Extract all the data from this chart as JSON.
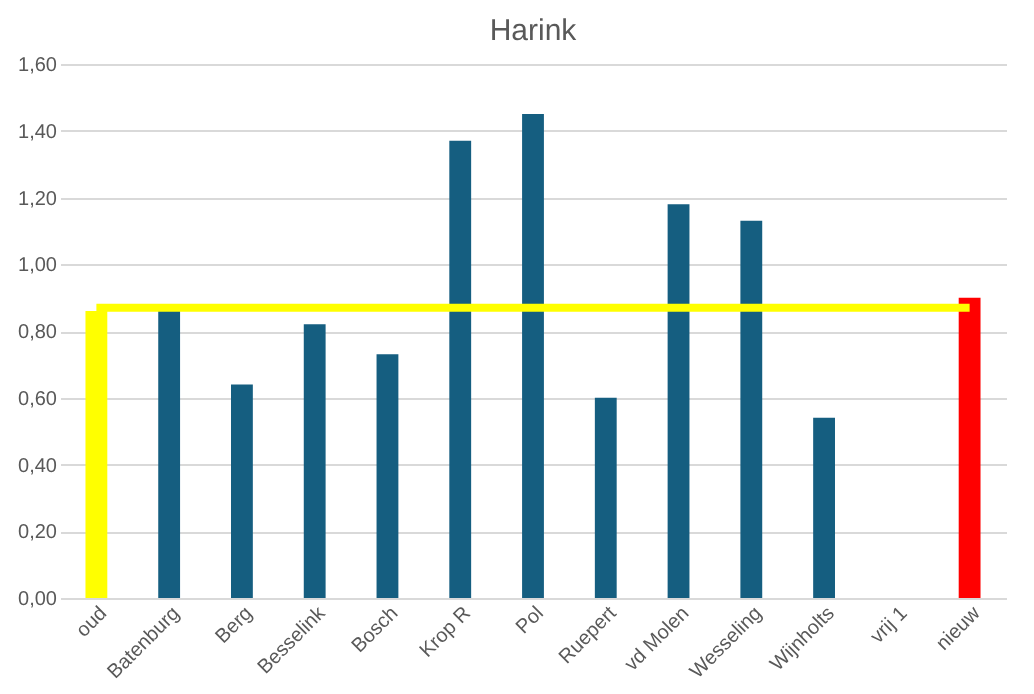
{
  "chart_data": {
    "type": "bar",
    "title": "Harink",
    "categories": [
      "oud",
      "Batenburg",
      "Berg",
      "Besselink",
      "Bosch",
      "Krop R",
      "Pol",
      "Ruepert",
      "vd Molen",
      "Wesseling",
      "Wijnholts",
      "vrij 1",
      "nieuw"
    ],
    "values": [
      0.86,
      0.86,
      0.64,
      0.82,
      0.73,
      1.37,
      1.45,
      0.6,
      1.18,
      1.13,
      0.54,
      null,
      0.9
    ],
    "colors": [
      "#ffff00",
      "#155e80",
      "#155e80",
      "#155e80",
      "#155e80",
      "#155e80",
      "#155e80",
      "#155e80",
      "#155e80",
      "#155e80",
      "#155e80",
      "#155e80",
      "#ff0000"
    ],
    "ylim": [
      0,
      1.6
    ],
    "yticks": [
      {
        "value": 0,
        "label": "0,00"
      },
      {
        "value": 0.2,
        "label": "0,20"
      },
      {
        "value": 0.4,
        "label": "0,40"
      },
      {
        "value": 0.6,
        "label": "0,60"
      },
      {
        "value": 0.8,
        "label": "0,80"
      },
      {
        "value": 1.0,
        "label": "1,00"
      },
      {
        "value": 1.2,
        "label": "1,20"
      },
      {
        "value": 1.4,
        "label": "1,40"
      },
      {
        "value": 1.6,
        "label": "1,60"
      }
    ],
    "ref_lines": [
      {
        "axis": "y",
        "value": 0.87,
        "color": "#ffff00"
      }
    ],
    "grid": "y"
  }
}
